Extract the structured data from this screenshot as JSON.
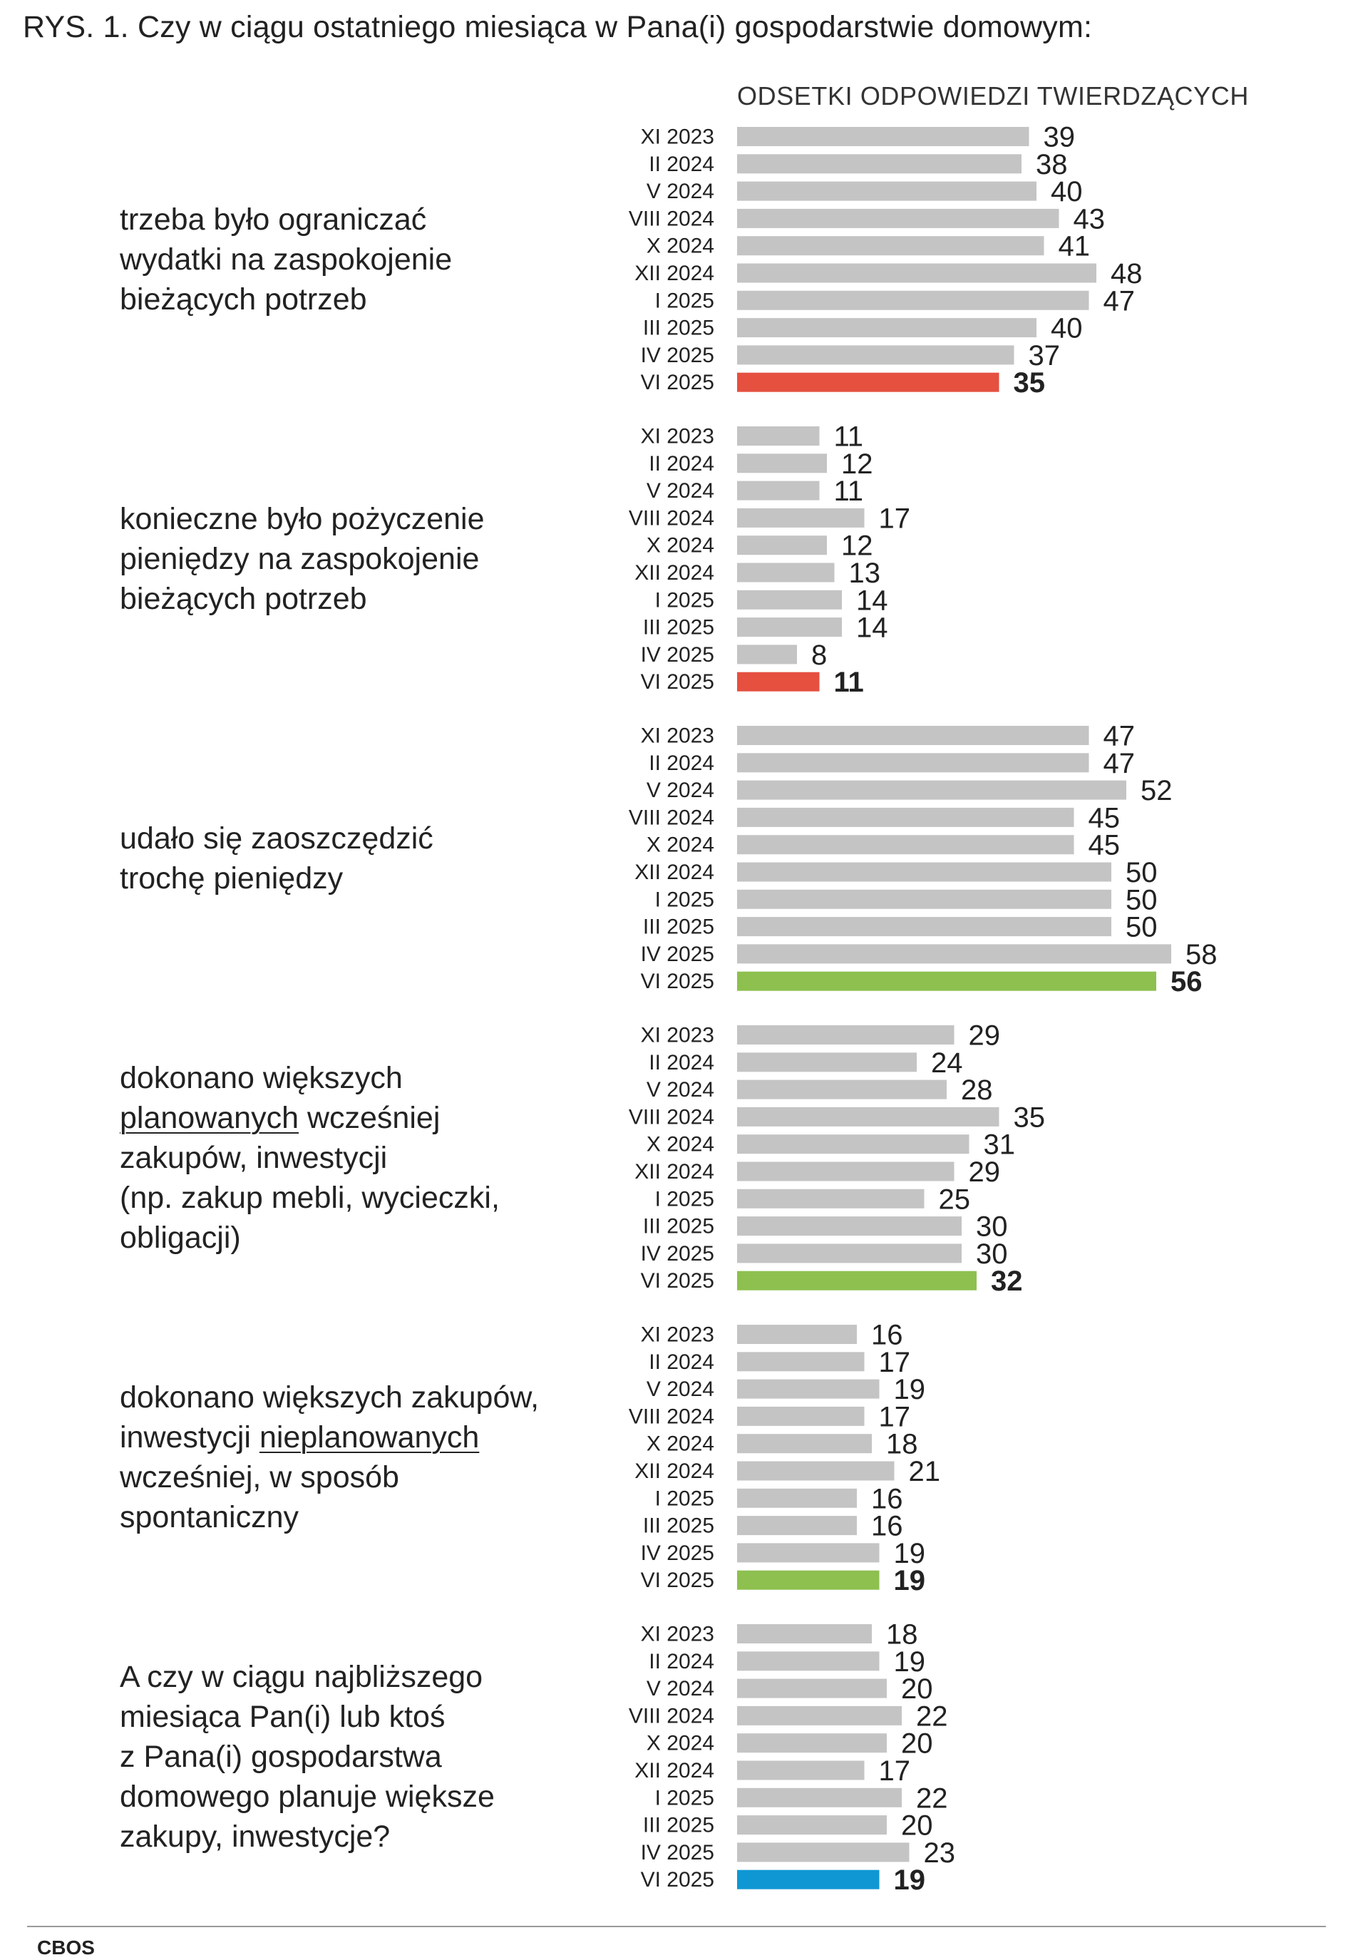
{
  "title": "RYS. 1. Czy w ciągu ostatniego miesiąca w Pana(i) gospodarstwie domowym:",
  "subtitle": "ODSETKI ODPOWIEDZI TWIERDZĄCYCH",
  "source": "CBOS",
  "colors": {
    "base_bar": "#c4c4c4",
    "highlight_red": "#e5503f",
    "highlight_green": "#8dc04f",
    "highlight_blue": "#0f97d3",
    "text": "#222222"
  },
  "chart_data": {
    "type": "bar",
    "orientation": "horizontal",
    "grid": false,
    "categories": [
      "XI 2023",
      "II 2024",
      "V 2024",
      "VIII 2024",
      "X 2024",
      "XII 2024",
      "I 2025",
      "III 2025",
      "IV 2025",
      "VI 2025"
    ],
    "panels": [
      {
        "question_lines": [
          [
            {
              "text": "trzeba było ograniczać"
            }
          ],
          [
            {
              "text": "wydatki na zaspokojenie"
            }
          ],
          [
            {
              "text": "bieżących potrzeb"
            }
          ]
        ],
        "values": [
          39,
          38,
          40,
          43,
          41,
          48,
          47,
          40,
          37,
          35
        ],
        "highlight_color": "#e5503f"
      },
      {
        "question_lines": [
          [
            {
              "text": "konieczne było pożyczenie"
            }
          ],
          [
            {
              "text": "pieniędzy na zaspokojenie"
            }
          ],
          [
            {
              "text": "bieżących potrzeb"
            }
          ]
        ],
        "values": [
          11,
          12,
          11,
          17,
          12,
          13,
          14,
          14,
          8,
          11
        ],
        "highlight_color": "#e5503f"
      },
      {
        "question_lines": [
          [
            {
              "text": "udało się zaoszczędzić"
            }
          ],
          [
            {
              "text": "trochę pieniędzy"
            }
          ]
        ],
        "values": [
          47,
          47,
          52,
          45,
          45,
          50,
          50,
          50,
          58,
          56
        ],
        "highlight_color": "#8dc04f"
      },
      {
        "question_lines": [
          [
            {
              "text": "dokonano większych"
            }
          ],
          [
            {
              "text": "planowanych",
              "underline": true
            },
            {
              "text": " wcześniej"
            }
          ],
          [
            {
              "text": "zakupów, inwestycji"
            }
          ],
          [
            {
              "text": "(np. zakup mebli, wycieczki,"
            }
          ],
          [
            {
              "text": "obligacji)"
            }
          ]
        ],
        "values": [
          29,
          24,
          28,
          35,
          31,
          29,
          25,
          30,
          30,
          32
        ],
        "highlight_color": "#8dc04f"
      },
      {
        "question_lines": [
          [
            {
              "text": "dokonano większych zakupów,"
            }
          ],
          [
            {
              "text": "inwestycji "
            },
            {
              "text": "nieplanowanych",
              "underline": true
            }
          ],
          [
            {
              "text": "wcześniej, w sposób"
            }
          ],
          [
            {
              "text": "spontaniczny"
            }
          ]
        ],
        "values": [
          16,
          17,
          19,
          17,
          18,
          21,
          16,
          16,
          19,
          19
        ],
        "highlight_color": "#8dc04f"
      },
      {
        "question_lines": [
          [
            {
              "text": "A czy w ciągu najbliższego"
            }
          ],
          [
            {
              "text": "miesiąca Pan(i) lub ktoś"
            }
          ],
          [
            {
              "text": "z Pana(i) gospodarstwa"
            }
          ],
          [
            {
              "text": "domowego planuje większe"
            }
          ],
          [
            {
              "text": "zakupy, inwestycje?"
            }
          ]
        ],
        "values": [
          18,
          19,
          20,
          22,
          20,
          17,
          22,
          20,
          23,
          19
        ],
        "highlight_color": "#0f97d3"
      }
    ]
  }
}
